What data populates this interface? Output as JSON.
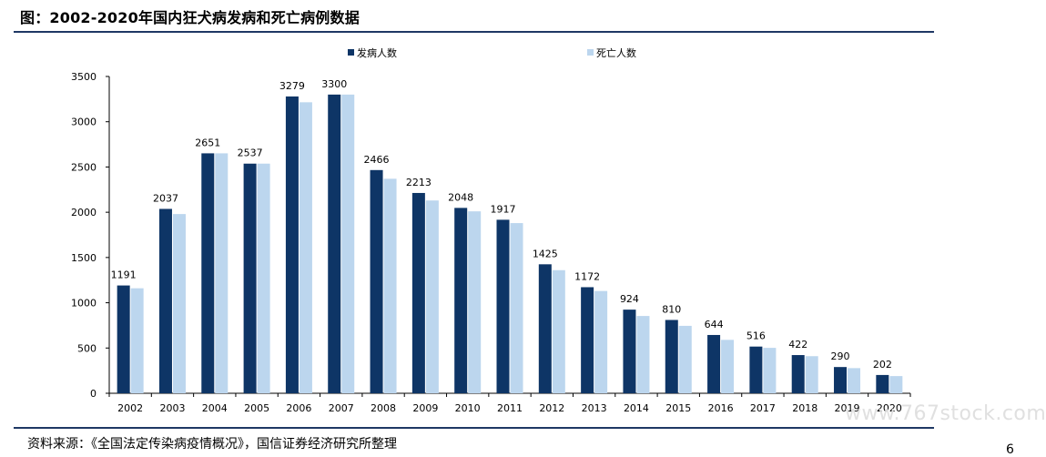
{
  "header": {
    "title": "图：2002-2020年国内狂犬病发病和死亡病例数据"
  },
  "footer": {
    "source": "资料来源：《全国法定传染病疫情概况》，国信证券经济研究所整理",
    "watermark": "www.767stock.com",
    "page_number": "6"
  },
  "colors": {
    "rule": "#1f3864",
    "series_incidence": "#0e3566",
    "series_deaths": "#bcd6ee"
  },
  "chart_data": {
    "type": "bar",
    "title": "",
    "xlabel": "",
    "ylabel": "",
    "ylim": [
      0,
      3500
    ],
    "yticks": [
      0,
      500,
      1000,
      1500,
      2000,
      2500,
      3000,
      3500
    ],
    "legend_placement": "top",
    "grid": false,
    "categories": [
      "2002",
      "2003",
      "2004",
      "2005",
      "2006",
      "2007",
      "2008",
      "2009",
      "2010",
      "2011",
      "2012",
      "2013",
      "2014",
      "2015",
      "2016",
      "2017",
      "2018",
      "2019",
      "2020"
    ],
    "series": [
      {
        "name": "发病人数",
        "color": "#0e3566",
        "values": [
          1191,
          2037,
          2651,
          2537,
          3279,
          3300,
          2466,
          2213,
          2048,
          1917,
          1425,
          1172,
          924,
          810,
          644,
          516,
          422,
          290,
          202
        ],
        "data_labels": [
          "1191",
          "2037",
          "2651",
          "2537",
          "3279",
          "3300",
          "2466",
          "2213",
          "2048",
          "1917",
          "1425",
          "1172",
          "924",
          "810",
          "644",
          "516",
          "422",
          "290",
          "202"
        ]
      },
      {
        "name": "死亡人数",
        "color": "#bcd6ee",
        "values": [
          1160,
          1980,
          2651,
          2537,
          3215,
          3300,
          2370,
          2130,
          2010,
          1880,
          1360,
          1130,
          854,
          745,
          590,
          502,
          410,
          278,
          190
        ]
      }
    ]
  }
}
